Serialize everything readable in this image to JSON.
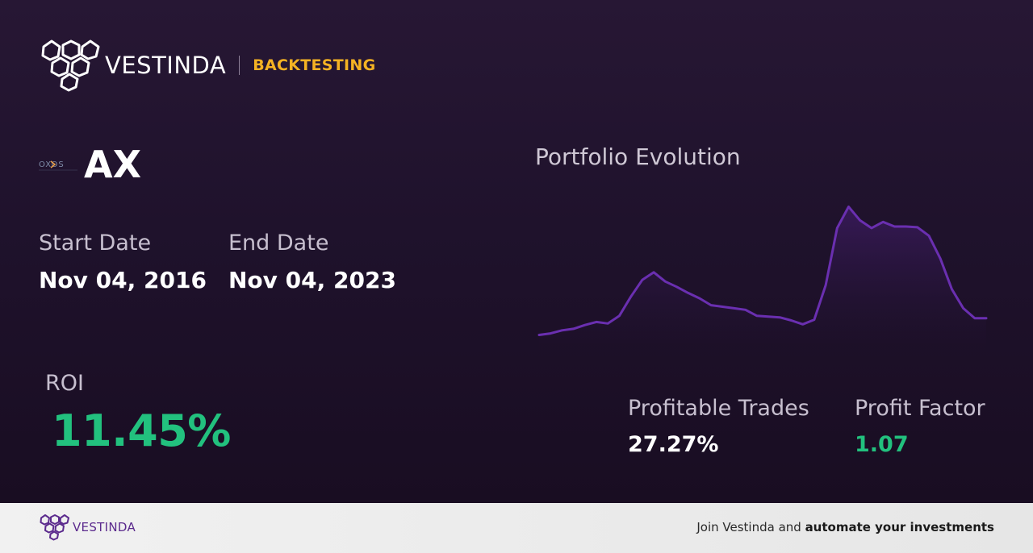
{
  "header": {
    "brand": "VESTINDA",
    "product": "BACKTESTING"
  },
  "asset": {
    "logo_text": "OXOS",
    "ticker": "AX"
  },
  "dates": {
    "start_label": "Start Date",
    "start_value": "Nov 04, 2016",
    "end_label": "End Date",
    "end_value": "Nov 04, 2023"
  },
  "roi": {
    "label": "ROI",
    "value": "11.45%"
  },
  "stats": {
    "profitable_label": "Profitable Trades",
    "profitable_value": "27.27%",
    "pf_label": "Profit Factor",
    "pf_value": "1.07"
  },
  "colors": {
    "accent": "#f4b223",
    "positive": "#22c17e",
    "line": "#6a2fb0"
  },
  "chart_data": {
    "type": "area",
    "title": "Portfolio Evolution",
    "series": [
      {
        "values": [
          10,
          12,
          16,
          18,
          23,
          27,
          25,
          35,
          60,
          82,
          92,
          80,
          73,
          65,
          58,
          49,
          47,
          45,
          43,
          35,
          34,
          33,
          29,
          24,
          30,
          75,
          150,
          178,
          160,
          150,
          158,
          152,
          152,
          151,
          140,
          110,
          70,
          45,
          32,
          32
        ]
      }
    ],
    "ylim": [
      0,
      190
    ],
    "grid": false,
    "legend": "none"
  },
  "footer": {
    "brand": "VESTINDA",
    "cta_plain": "Join Vestinda and ",
    "cta_bold": "automate your investments"
  }
}
